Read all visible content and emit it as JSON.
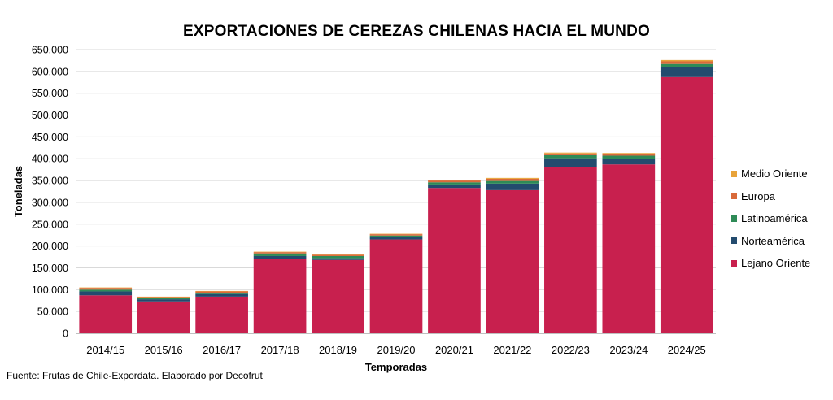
{
  "chart_data": {
    "type": "bar",
    "stacked": true,
    "title": "EXPORTACIONES DE CEREZAS CHILENAS HACIA EL MUNDO",
    "xlabel": "Temporadas",
    "ylabel": "Toneladas",
    "ylim": [
      0,
      650000
    ],
    "yticks": [
      "0",
      "50.000",
      "100.000",
      "150.000",
      "200.000",
      "250.000",
      "300.000",
      "350.000",
      "400.000",
      "450.000",
      "500.000",
      "550.000",
      "600.000",
      "650.000"
    ],
    "grid": true,
    "legend_position": "right",
    "categories": [
      "2014/15",
      "2015/16",
      "2016/17",
      "2017/18",
      "2018/19",
      "2019/20",
      "2020/21",
      "2021/22",
      "2022/23",
      "2023/24",
      "2024/25"
    ],
    "series": [
      {
        "name": "Lejano Oriente",
        "color": "#C8204E",
        "values": [
          87000,
          73000,
          84000,
          170000,
          168000,
          215000,
          333000,
          328000,
          381000,
          387000,
          587000
        ]
      },
      {
        "name": "Norteamérica",
        "color": "#234B6E",
        "values": [
          9000,
          5000,
          6000,
          7000,
          4000,
          5000,
          8000,
          15000,
          20000,
          13000,
          23000
        ]
      },
      {
        "name": "Latinoamérica",
        "color": "#2E8B57",
        "values": [
          4000,
          3000,
          3000,
          6000,
          5000,
          4000,
          5000,
          6000,
          7000,
          7000,
          7000
        ]
      },
      {
        "name": "Europa",
        "color": "#D96A3A",
        "values": [
          4000,
          2000,
          3000,
          3000,
          3000,
          3000,
          4000,
          5000,
          4000,
          4000,
          6000
        ]
      },
      {
        "name": "Medio Oriente",
        "color": "#E8A33A",
        "values": [
          1000,
          1000,
          1000,
          1000,
          1000,
          1000,
          2000,
          2000,
          2000,
          2000,
          3000
        ]
      }
    ]
  },
  "legend_order": [
    "Medio Oriente",
    "Europa",
    "Latinoamérica",
    "Norteamérica",
    "Lejano Oriente"
  ],
  "source": "Fuente: Frutas de Chile-Expordata. Elaborado por Decofrut"
}
